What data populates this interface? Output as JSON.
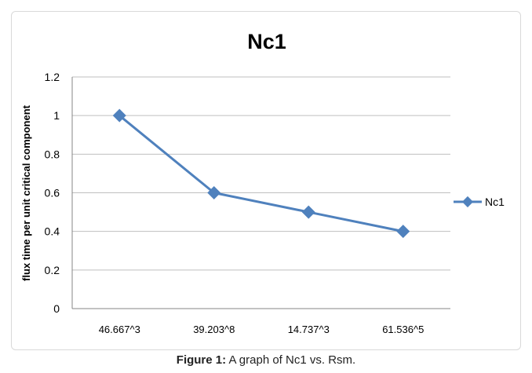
{
  "chart_data": {
    "type": "line",
    "title": "Nc1",
    "xlabel": "",
    "ylabel": "flux time per unit critical component",
    "categories": [
      "46.667^3",
      "39.203^8",
      "14.737^3",
      "61.536^5"
    ],
    "series": [
      {
        "name": "Nc1",
        "values": [
          1,
          0.6,
          0.5,
          0.4
        ],
        "color": "#4f81bd"
      }
    ],
    "ylim": [
      0,
      1.2
    ],
    "yticks": [
      "0",
      "0.2",
      "0.4",
      "0.6",
      "0.8",
      "1",
      "1.2"
    ],
    "grid": true,
    "legend": "right"
  },
  "caption": {
    "label": "Figure 1:",
    "text": " A graph of Nc1 vs. Rsm."
  }
}
